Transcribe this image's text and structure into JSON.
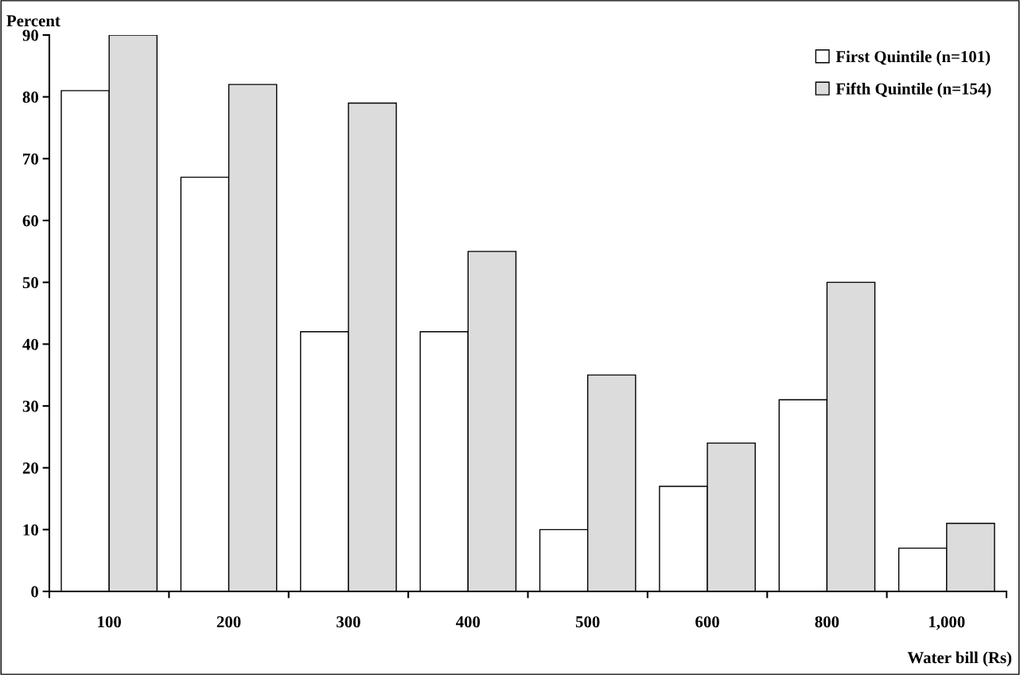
{
  "chart_data": {
    "type": "bar",
    "ylabel": "Percent",
    "xlabel": "Water bill (Rs)",
    "categories": [
      "100",
      "200",
      "300",
      "400",
      "500",
      "600",
      "800",
      "1,000"
    ],
    "series": [
      {
        "name": "First Quintile (n=101)",
        "color": "#ffffff",
        "values": [
          81,
          67,
          42,
          42,
          10,
          17,
          31,
          7
        ]
      },
      {
        "name": "Fifth Quintile (n=154)",
        "color": "#dcdcdc",
        "values": [
          90,
          82,
          79,
          55,
          35,
          24,
          50,
          11
        ]
      }
    ],
    "ylim": [
      0,
      90
    ],
    "yticks": [
      0,
      10,
      20,
      30,
      40,
      50,
      60,
      70,
      80,
      90
    ],
    "grid": false,
    "legend": "top right"
  }
}
